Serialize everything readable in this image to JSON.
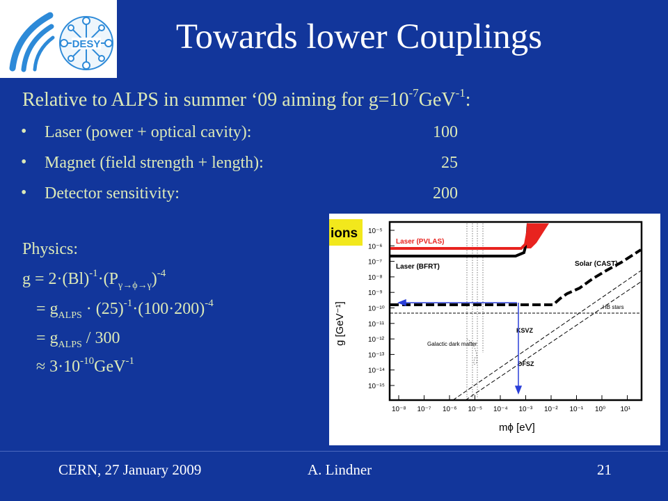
{
  "logo": {
    "text": "DESY"
  },
  "title": "Towards lower Couplings",
  "intro": {
    "prefix": "Relative to ALPS in summer ‘09 aiming for g=10",
    "exp1": "-7",
    "mid": "GeV",
    "exp2": "-1",
    "suffix": ":"
  },
  "bullets": [
    {
      "label": "Laser (power + optical cavity):",
      "value": "100"
    },
    {
      "label": "Magnet (field strength + length):",
      "value": "25"
    },
    {
      "label": "Detector sensitivity:",
      "value": "200"
    }
  ],
  "physics": {
    "heading": "Physics:",
    "line1": {
      "a": "g = 2·(Bl)",
      "e1": "-1",
      "b": "·(P",
      "sub": "γ→ϕ→γ",
      "c": ")",
      "e2": "-4"
    },
    "line2": {
      "a": "= g",
      "sub": "ALPS",
      "b": " · (25)",
      "e1": "-1",
      "c": "·(100·200)",
      "e2": "-4"
    },
    "line3": {
      "a": "= g",
      "sub": "ALPS",
      "b": " / 300"
    },
    "line4": {
      "a": "≈ 3·10",
      "e1": "-10",
      "b": "GeV",
      "e2": "-1"
    }
  },
  "plot": {
    "corner_label": "ions",
    "ylabel": "g  [GeV⁻¹]",
    "xlabel": "mϕ  [eV]",
    "y_ticks": [
      "10⁻⁵",
      "10⁻⁶",
      "10⁻⁷",
      "10⁻⁸",
      "10⁻⁹",
      "10⁻¹⁰",
      "10⁻¹¹",
      "10⁻¹²",
      "10⁻¹³",
      "10⁻¹⁴",
      "10⁻¹⁵"
    ],
    "x_ticks": [
      "10⁻⁸",
      "10⁻⁷",
      "10⁻⁶",
      "10⁻⁵",
      "10⁻⁴",
      "10⁻³",
      "10⁻²",
      "10⁻¹",
      "10⁰",
      "10¹"
    ],
    "labels": {
      "laser_pvlas": "Laser (PVLAS)",
      "laser_bfrt": "Laser (BFRT)",
      "solar_cast": "Solar (CAST)",
      "hb_stars": "HB stars",
      "ksvz": "KSVZ",
      "dfsz": "DFSZ",
      "galactic": "Galactic dark matter"
    },
    "colors": {
      "pvlas": "#e8231f",
      "corner": "#f2e81c",
      "arrow": "#2a3fd8"
    }
  },
  "footer": {
    "left": "CERN, 27 January 2009",
    "author": "A. Lindner",
    "page": "21"
  }
}
